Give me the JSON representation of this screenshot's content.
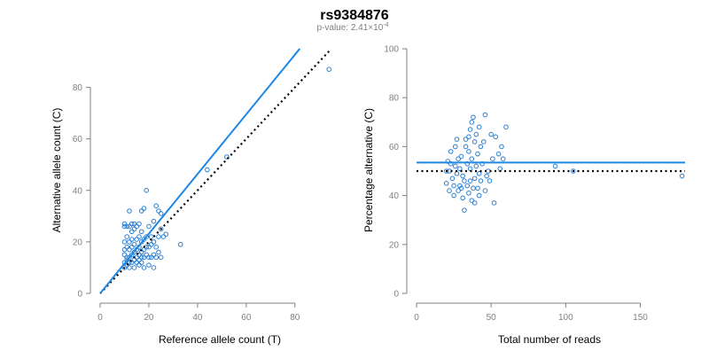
{
  "chart_data": {
    "title": "rs9384876",
    "subtitle_prefix": "p-value: 2.41×10",
    "subtitle_exponent": "-4",
    "colors": {
      "points": "#2a7fd4",
      "fit": "#1e88e5",
      "reference": "#000000",
      "axis": "#7f7f7f"
    },
    "panels": [
      {
        "type": "scatter",
        "xlabel": "Reference allele count (T)",
        "ylabel": "Alternative allele count (C)",
        "xlim": [
          0,
          95
        ],
        "ylim": [
          0,
          85
        ],
        "xticks": [
          0,
          20,
          40,
          60,
          80
        ],
        "yticks": [
          0,
          20,
          40,
          60,
          80
        ],
        "fit_line": {
          "x": [
            0,
            82
          ],
          "y": [
            0,
            95
          ]
        },
        "reference_line": {
          "x": [
            0,
            94
          ],
          "y": [
            0,
            94
          ]
        },
        "points": [
          [
            10,
            10
          ],
          [
            10,
            12
          ],
          [
            10,
            15
          ],
          [
            10,
            17
          ],
          [
            10,
            20
          ],
          [
            10,
            26
          ],
          [
            10,
            27
          ],
          [
            11,
            11
          ],
          [
            11,
            13
          ],
          [
            11,
            14
          ],
          [
            11,
            18
          ],
          [
            11,
            22
          ],
          [
            11,
            26
          ],
          [
            12,
            10
          ],
          [
            12,
            12
          ],
          [
            12,
            14
          ],
          [
            12,
            17
          ],
          [
            12,
            20
          ],
          [
            12,
            26
          ],
          [
            12,
            32
          ],
          [
            13,
            12
          ],
          [
            13,
            15
          ],
          [
            13,
            18
          ],
          [
            13,
            21
          ],
          [
            13,
            24
          ],
          [
            13,
            27
          ],
          [
            14,
            10
          ],
          [
            14,
            13
          ],
          [
            14,
            16
          ],
          [
            14,
            19
          ],
          [
            14,
            25
          ],
          [
            14,
            27
          ],
          [
            15,
            12
          ],
          [
            15,
            14
          ],
          [
            15,
            17
          ],
          [
            15,
            21
          ],
          [
            15,
            26
          ],
          [
            16,
            11
          ],
          [
            16,
            13
          ],
          [
            16,
            15
          ],
          [
            16,
            18
          ],
          [
            16,
            22
          ],
          [
            16,
            27
          ],
          [
            17,
            12
          ],
          [
            17,
            14
          ],
          [
            17,
            16
          ],
          [
            17,
            20
          ],
          [
            17,
            24
          ],
          [
            17,
            32
          ],
          [
            18,
            10
          ],
          [
            18,
            14
          ],
          [
            18,
            17
          ],
          [
            18,
            21
          ],
          [
            18,
            33
          ],
          [
            19,
            15
          ],
          [
            19,
            18
          ],
          [
            19,
            22
          ],
          [
            19,
            40
          ],
          [
            20,
            11
          ],
          [
            20,
            14
          ],
          [
            20,
            18
          ],
          [
            20,
            26
          ],
          [
            21,
            14
          ],
          [
            21,
            19
          ],
          [
            21,
            22
          ],
          [
            22,
            10
          ],
          [
            22,
            15
          ],
          [
            22,
            20
          ],
          [
            22,
            28
          ],
          [
            23,
            14
          ],
          [
            23,
            18
          ],
          [
            23,
            34
          ],
          [
            24,
            16
          ],
          [
            24,
            22
          ],
          [
            24,
            32
          ],
          [
            25,
            14
          ],
          [
            25,
            25
          ],
          [
            25,
            31
          ],
          [
            26,
            22
          ],
          [
            27,
            23
          ],
          [
            33,
            19
          ],
          [
            44,
            48
          ],
          [
            52,
            53
          ],
          [
            94,
            87
          ]
        ]
      },
      {
        "type": "scatter",
        "xlabel": "Total number of reads",
        "ylabel": "Percentage alternative (C)",
        "xlim": [
          0,
          180
        ],
        "ylim": [
          0,
          100
        ],
        "xticks": [
          0,
          50,
          100,
          150
        ],
        "yticks": [
          0,
          20,
          40,
          60,
          80,
          100
        ],
        "fit_level": 53.5,
        "reference_level": 50,
        "points": [
          [
            20,
            45
          ],
          [
            20,
            50
          ],
          [
            21,
            54
          ],
          [
            22,
            42
          ],
          [
            22,
            50
          ],
          [
            23,
            53
          ],
          [
            23,
            58
          ],
          [
            24,
            47
          ],
          [
            25,
            40
          ],
          [
            25,
            44
          ],
          [
            26,
            52
          ],
          [
            26,
            60
          ],
          [
            27,
            49
          ],
          [
            27,
            63
          ],
          [
            28,
            42
          ],
          [
            28,
            55
          ],
          [
            29,
            44
          ],
          [
            29,
            51
          ],
          [
            30,
            43
          ],
          [
            30,
            56
          ],
          [
            31,
            39
          ],
          [
            31,
            48
          ],
          [
            32,
            34
          ],
          [
            32,
            46
          ],
          [
            33,
            60
          ],
          [
            33,
            63
          ],
          [
            34,
            44
          ],
          [
            34,
            53
          ],
          [
            35,
            41
          ],
          [
            35,
            58
          ],
          [
            35,
            64
          ],
          [
            36,
            46
          ],
          [
            36,
            51
          ],
          [
            36,
            67
          ],
          [
            37,
            38
          ],
          [
            37,
            55
          ],
          [
            37,
            70
          ],
          [
            38,
            43
          ],
          [
            38,
            72
          ],
          [
            39,
            37
          ],
          [
            39,
            47
          ],
          [
            39,
            62
          ],
          [
            40,
            52
          ],
          [
            40,
            65
          ],
          [
            41,
            43
          ],
          [
            41,
            57
          ],
          [
            42,
            40
          ],
          [
            42,
            49
          ],
          [
            42,
            68
          ],
          [
            43,
            46
          ],
          [
            43,
            60
          ],
          [
            44,
            53
          ],
          [
            45,
            62
          ],
          [
            46,
            42
          ],
          [
            46,
            73
          ],
          [
            47,
            48
          ],
          [
            48,
            50
          ],
          [
            49,
            46
          ],
          [
            50,
            65
          ],
          [
            51,
            55
          ],
          [
            52,
            37
          ],
          [
            53,
            64
          ],
          [
            55,
            57
          ],
          [
            56,
            51
          ],
          [
            57,
            60
          ],
          [
            58,
            55
          ],
          [
            60,
            68
          ],
          [
            93,
            52
          ],
          [
            105,
            50
          ],
          [
            178,
            48
          ]
        ]
      }
    ]
  }
}
